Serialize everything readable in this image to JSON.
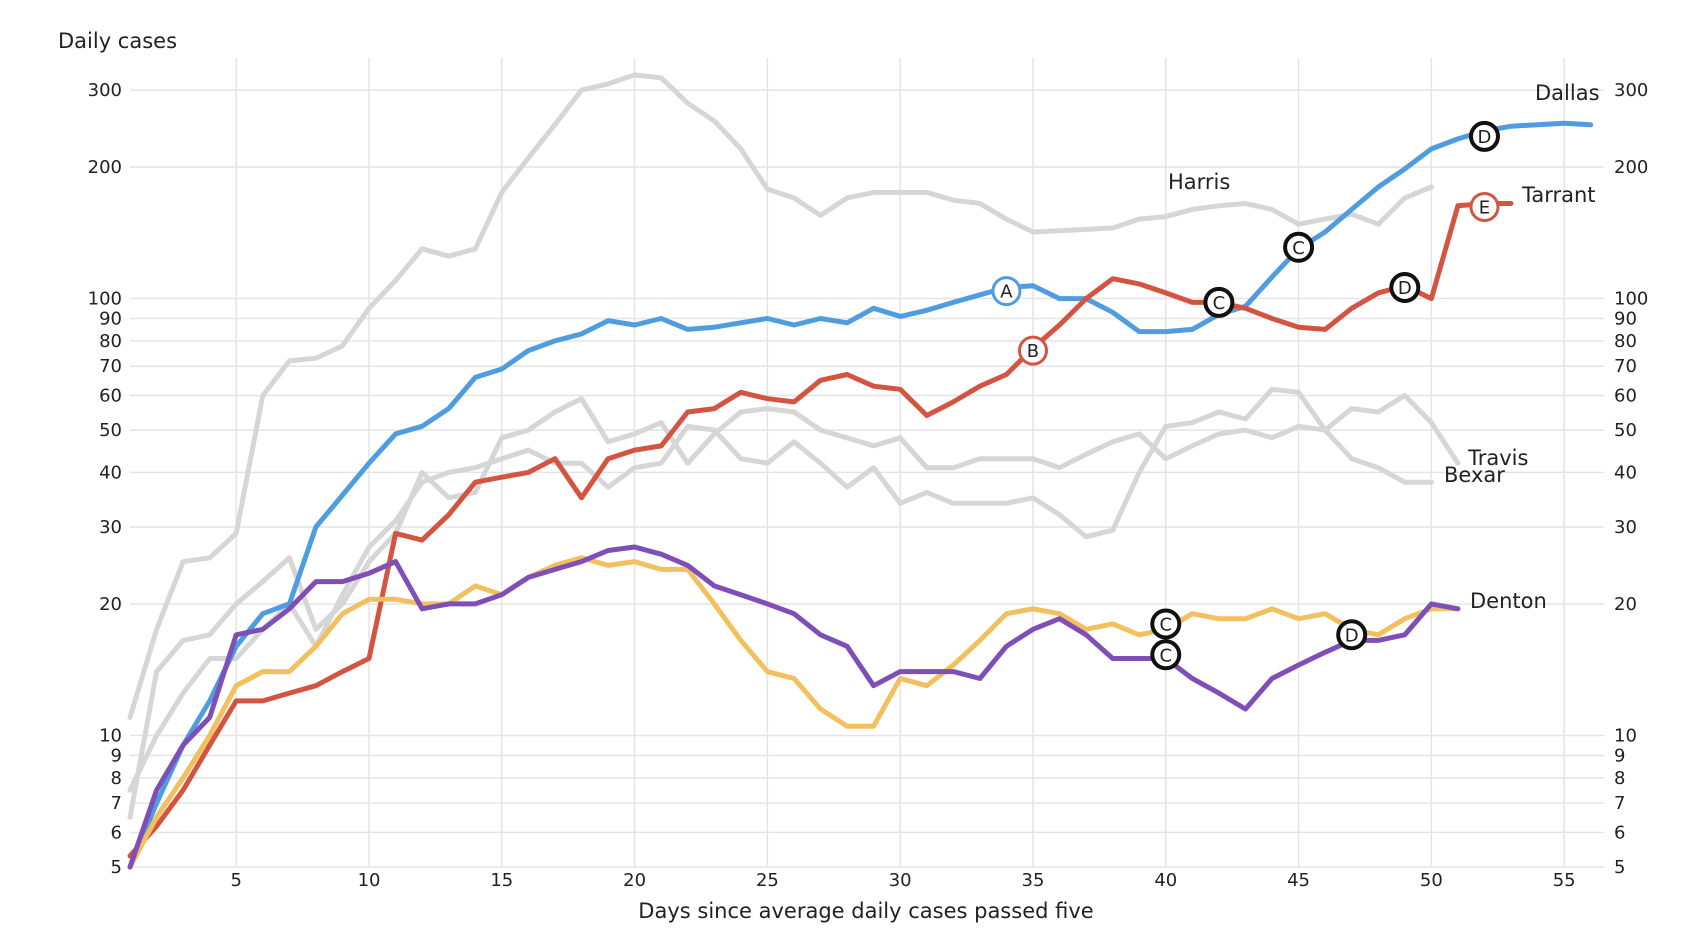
{
  "chart_data": {
    "type": "line",
    "ylabel": "Daily cases",
    "xlabel": "Days since average daily cases passed five",
    "y_scale": "log",
    "ylim": [
      5,
      330
    ],
    "xlim": [
      1,
      56.5
    ],
    "y_ticks": [
      5,
      6,
      7,
      8,
      9,
      10,
      20,
      30,
      40,
      50,
      60,
      70,
      80,
      90,
      100,
      200,
      300
    ],
    "x_ticks": [
      5,
      10,
      15,
      20,
      25,
      30,
      35,
      40,
      45,
      50,
      55
    ],
    "grid": true,
    "series": [
      {
        "name": "Harris",
        "color": "#d6d6d6",
        "values": [
          11,
          17.5,
          25,
          25.5,
          29,
          60,
          72,
          73,
          78,
          95,
          110,
          130,
          125,
          130,
          175,
          210,
          250,
          300,
          310,
          325,
          320,
          280,
          255,
          220,
          178,
          170,
          155,
          170,
          175,
          175,
          175,
          168,
          165,
          152,
          142,
          143,
          144,
          145,
          152,
          154,
          160,
          163,
          165,
          160,
          148,
          152,
          156,
          148,
          170,
          180
        ]
      },
      {
        "name": "Travis",
        "color": "#d6d6d6",
        "values": [
          7.5,
          10,
          12.5,
          15,
          15,
          17.5,
          20,
          16,
          21,
          27,
          31,
          38,
          40,
          41,
          43,
          45,
          42,
          42,
          37,
          41,
          42,
          51,
          50,
          43,
          42,
          47,
          42,
          37,
          41,
          34,
          36,
          34,
          34,
          34,
          35,
          32,
          28.5,
          29.5,
          40,
          51,
          52,
          55,
          53,
          62,
          61,
          50,
          56,
          55,
          60,
          52,
          42
        ]
      },
      {
        "name": "Bexar",
        "color": "#d6d6d6",
        "values": [
          6.5,
          14,
          16.5,
          17,
          20,
          22.5,
          25.5,
          17.5,
          20,
          25,
          29,
          40,
          35,
          36,
          48,
          50,
          55,
          59,
          47,
          49,
          52,
          42,
          49,
          55,
          56,
          55,
          50,
          48,
          46,
          48,
          41,
          41,
          43,
          43,
          43,
          41,
          44,
          47,
          49,
          43,
          46,
          49,
          50,
          48,
          51,
          50,
          43,
          41,
          38,
          38
        ]
      },
      {
        "name": "Dallas",
        "color": "#4f9de0",
        "values": [
          5,
          7,
          9.5,
          12,
          16,
          19,
          20,
          30,
          35.5,
          42,
          49,
          51,
          56,
          66,
          69,
          76,
          80,
          83,
          89,
          87,
          90,
          85,
          86,
          88,
          90,
          87,
          90,
          88,
          95,
          91,
          94,
          98,
          102,
          106,
          107,
          100,
          100,
          93,
          84,
          84,
          85,
          92,
          96,
          112,
          130,
          142,
          160,
          180,
          198,
          220,
          232,
          242,
          248,
          250,
          252,
          250
        ]
      },
      {
        "name": "Tarrant",
        "color": "#d35541",
        "values": [
          5.3,
          6.2,
          7.5,
          9.5,
          12,
          12,
          12.5,
          13,
          14,
          15,
          29,
          28,
          32,
          38,
          39,
          40,
          43,
          35,
          43,
          45,
          46,
          55,
          56,
          61,
          59,
          58,
          65,
          67,
          63,
          62,
          54,
          58,
          63,
          67,
          77,
          87,
          100,
          111,
          108,
          103,
          98,
          98,
          95,
          90,
          86,
          85,
          95,
          103,
          107,
          100,
          163,
          165,
          165
        ]
      },
      {
        "name": "",
        "color": "#f2c05e",
        "values": [
          5,
          6.5,
          8,
          10,
          13,
          14,
          14,
          16,
          19,
          20.5,
          20.5,
          20,
          20,
          22,
          21,
          23,
          24.5,
          25.5,
          24.5,
          25,
          24,
          24,
          20,
          16.5,
          14,
          13.5,
          11.5,
          10.5,
          10.5,
          13.5,
          13,
          14.5,
          16.5,
          19,
          19.5,
          19,
          17.5,
          18,
          17,
          17.5,
          19,
          18.5,
          18.5,
          19.5,
          18.5,
          19,
          17.5,
          17,
          18.5,
          19.5,
          19.5
        ]
      },
      {
        "name": "Denton",
        "color": "#7f4fb8",
        "values": [
          5,
          7.5,
          9.5,
          11,
          17,
          17.5,
          19.5,
          22.5,
          22.5,
          23.5,
          25,
          19.5,
          20,
          20,
          21,
          23,
          24,
          25,
          26.5,
          27,
          26,
          24.5,
          22,
          21,
          20,
          19,
          17,
          16,
          13,
          14,
          14,
          14,
          13.5,
          16,
          17.5,
          18.5,
          17,
          15,
          15,
          15,
          13.5,
          12.5,
          11.5,
          13.5,
          14.5,
          15.5,
          16.5,
          16.5,
          17,
          20,
          19.5
        ]
      }
    ],
    "annotations": [
      {
        "label": "A",
        "series": "Dallas",
        "x": 34,
        "y": 104,
        "style": "blue"
      },
      {
        "label": "B",
        "series": "Tarrant",
        "x": 35,
        "y": 76,
        "style": "red"
      },
      {
        "label": "C",
        "series": "Tarrant",
        "x": 42,
        "y": 98,
        "style": "black"
      },
      {
        "label": "C",
        "series": "Dallas",
        "x": 45,
        "y": 131,
        "style": "black"
      },
      {
        "label": "D",
        "series": "Dallas",
        "x": 52,
        "y": 235,
        "style": "black"
      },
      {
        "label": "D",
        "series": "Tarrant",
        "x": 49,
        "y": 106,
        "style": "black"
      },
      {
        "label": "E",
        "series": "Tarrant",
        "x": 52,
        "y": 162,
        "style": "red"
      },
      {
        "label": "C",
        "series": "Yellow",
        "x": 40,
        "y": 18,
        "style": "black"
      },
      {
        "label": "C",
        "series": "Denton",
        "x": 40,
        "y": 15.3,
        "style": "black"
      },
      {
        "label": "D",
        "series": "Denton",
        "x": 47,
        "y": 17,
        "style": "black"
      }
    ]
  }
}
